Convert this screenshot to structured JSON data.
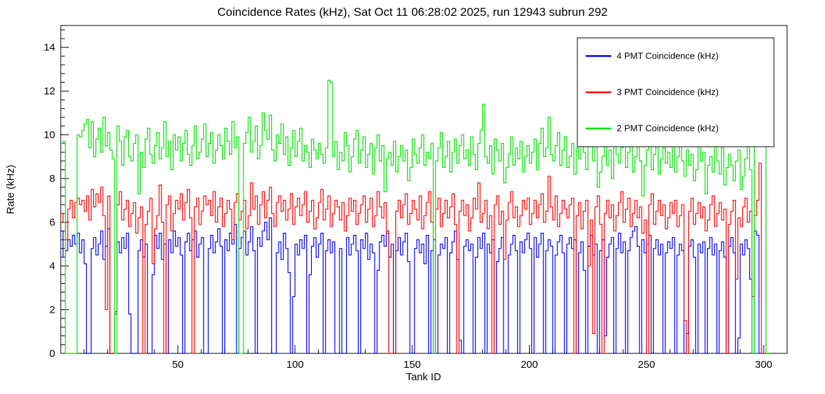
{
  "chart_data": {
    "type": "line",
    "subtype": "step-histogram",
    "title": "Coincidence Rates (kHz), Sat Oct 11 06:28:02 2025, run 12943 subrun 292",
    "xlabel": "Tank ID",
    "ylabel": "Rate (kHz)",
    "xlim": [
      0,
      310
    ],
    "ylim": [
      0,
      15
    ],
    "x_ticks_major": [
      50,
      100,
      150,
      200,
      250,
      300
    ],
    "x_minor_step": 10,
    "y_ticks_major": [
      0,
      2,
      4,
      6,
      8,
      10,
      12,
      14
    ],
    "y_minor_step": 0.4,
    "x_start": 0,
    "bin_width": 1,
    "grid": false,
    "legend_position": "top-right",
    "frame_color": "#000000",
    "series": [
      {
        "name": "4 PMT Coincidence (kHz)",
        "color": "#0000ff",
        "values": [
          5.6,
          4.4,
          4.7,
          5.2,
          4.9,
          5.4,
          5.0,
          5.5,
          4.6,
          5.2,
          4.1,
          0,
          0,
          4.8,
          5.3,
          4.5,
          5.0,
          5.6,
          4.3,
          4.9,
          5.7,
          0,
          0,
          1.9,
          5.1,
          4.6,
          5.3,
          4.8,
          5.5,
          1.8,
          0,
          0,
          0,
          4.7,
          5.2,
          4.4,
          5.0,
          0,
          0,
          3.6,
          5.4,
          4.8,
          5.5,
          4.3,
          5.0,
          0,
          5.2,
          4.6,
          5.6,
          4.9,
          5.3,
          4.5,
          0,
          5.1,
          5.5,
          4.7,
          5.2,
          5.6,
          4.4,
          5.0,
          5.3,
          0,
          0,
          4.8,
          5.4,
          4.6,
          5.1,
          5.7,
          4.9,
          0,
          5.2,
          4.7,
          5.5,
          5.0,
          5.9,
          0,
          4.8,
          5.3,
          5.6,
          4.5,
          5.1,
          5.8,
          4.7,
          0,
          5.3,
          4.9,
          5.6,
          6.0,
          5.2,
          6.2,
          0,
          0,
          4.6,
          5.1,
          4.3,
          5.5,
          4.8,
          3.7,
          0,
          2.6,
          5.0,
          4.5,
          5.2,
          4.8,
          5.4,
          0,
          3.6,
          4.9,
          5.3,
          4.4,
          5.0,
          5.5,
          0,
          4.7,
          5.2,
          4.6,
          5.1,
          0,
          0,
          4.8,
          0,
          0,
          5.3,
          4.5,
          5.0,
          5.4,
          4.7,
          0,
          5.2,
          4.8,
          5.5,
          4.3,
          5.0,
          4.6,
          0,
          3.8,
          5.1,
          5.4,
          4.9,
          5.6,
          4.4,
          5.0,
          0,
          4.7,
          5.3,
          4.5,
          5.1,
          5.5,
          4.2,
          0,
          0,
          4.8,
          5.2,
          4.6,
          5.0,
          4.1,
          5.4,
          0,
          4.7,
          5.2,
          0,
          4.5,
          5.0,
          4.8,
          5.3,
          0,
          4.6,
          5.1,
          5.6,
          4.3,
          0.6,
          0,
          4.9,
          5.2,
          4.7,
          5.0,
          0,
          4.4,
          5.3,
          4.8,
          5.5,
          0,
          5.0,
          4.6,
          5.2,
          0,
          4.2,
          4.8,
          5.3,
          0,
          0,
          4.5,
          5.0,
          5.4,
          4.7,
          0,
          5.1,
          4.6,
          5.2,
          5.5,
          4.8,
          0,
          5.3,
          4.4,
          5.0,
          5.5,
          0,
          4.7,
          5.2,
          4.9,
          0,
          4.5,
          5.1,
          5.4,
          4.6,
          0,
          5.0,
          5.3,
          4.8,
          5.2,
          0,
          4.6,
          5.1,
          3.8,
          0,
          4.9,
          5.4,
          4.5,
          5.0,
          0,
          4.7,
          5.2,
          0.8,
          4.4,
          5.0,
          5.3,
          0,
          4.8,
          5.5,
          4.6,
          5.1,
          0,
          4.7,
          5.3,
          5.6,
          5.8,
          4.9,
          0,
          5.2,
          4.6,
          5.0,
          5.4,
          0,
          4.8,
          5.2,
          4.5,
          5.0,
          0,
          4.6,
          5.1,
          4.8,
          5.3,
          0,
          4.5,
          5.0,
          4.7,
          0,
          0.9,
          4.9,
          5.2,
          4.4,
          0,
          5.0,
          4.6,
          5.1,
          0,
          4.8,
          5.3,
          4.5,
          5.0,
          0,
          4.7,
          5.1,
          4.4,
          0,
          4.9,
          5.3,
          4.6,
          0,
          0.7,
          5.0,
          4.5,
          5.2,
          4.8,
          3.4,
          0,
          5.6,
          5.4,
          0,
          0,
          0,
          0,
          0
        ]
      },
      {
        "name": "3 PMT Coincidence (kHz)",
        "color": "#ff0000",
        "values": [
          6.4,
          6.0,
          5.2,
          6.6,
          7.0,
          6.2,
          6.9,
          7.1,
          6.8,
          7.0,
          6.5,
          7.2,
          6.1,
          7.5,
          6.7,
          7.3,
          6.9,
          7.6,
          6.3,
          2.0,
          7.2,
          0,
          0,
          1.8,
          6.8,
          7.4,
          6.1,
          6.6,
          7.0,
          5.8,
          6.4,
          6.9,
          5.5,
          6.2,
          6.7,
          0,
          5.9,
          6.5,
          7.1,
          4.1,
          5.7,
          6.3,
          7.7,
          6.0,
          0,
          6.8,
          7.2,
          5.6,
          6.4,
          7.0,
          6.6,
          7.3,
          6.1,
          6.9,
          7.5,
          6.2,
          0,
          6.7,
          7.1,
          5.9,
          6.5,
          7.2,
          6.8,
          7.0,
          6.3,
          7.4,
          6.0,
          6.7,
          7.1,
          5.8,
          6.4,
          7.0,
          6.6,
          5.2,
          6.9,
          7.3,
          6.1,
          6.5,
          7.0,
          5.7,
          6.3,
          7.8,
          6.6,
          7.2,
          5.9,
          6.8,
          7.4,
          6.2,
          7.0,
          7.6,
          6.4,
          5.8,
          6.9,
          7.2,
          6.5,
          7.0,
          6.1,
          6.6,
          7.3,
          5.9,
          6.7,
          7.1,
          6.3,
          6.8,
          7.4,
          6.0,
          6.5,
          7.0,
          5.7,
          6.2,
          6.9,
          7.5,
          6.1,
          6.6,
          7.2,
          5.8,
          6.4,
          7.0,
          6.7,
          6.1,
          6.9,
          5.6,
          6.3,
          7.1,
          6.5,
          7.0,
          5.9,
          6.4,
          6.8,
          7.2,
          6.0,
          6.6,
          7.1,
          5.8,
          6.3,
          7.4,
          6.7,
          6.2,
          6.9,
          5.5,
          0,
          0,
          0,
          6.5,
          7.0,
          6.2,
          6.8,
          7.3,
          5.9,
          6.4,
          7.0,
          6.6,
          6.1,
          7.2,
          5.7,
          6.3,
          6.9,
          7.4,
          6.0,
          0,
          6.6,
          7.1,
          5.8,
          6.4,
          7.0,
          6.2,
          6.7,
          7.3,
          5.9,
          0,
          6.5,
          7.0,
          6.3,
          6.8,
          5.6,
          6.2,
          7.1,
          6.6,
          7.8,
          6.0,
          6.4,
          7.0,
          5.7,
          6.3,
          0,
          6.8,
          7.2,
          5.9,
          6.5,
          4.3,
          6.1,
          6.9,
          7.4,
          6.2,
          6.7,
          5.8,
          6.3,
          7.0,
          6.6,
          7.1,
          5.9,
          6.4,
          7.0,
          6.2,
          6.8,
          7.3,
          6.0,
          6.5,
          8.1,
          6.7,
          6.1,
          7.2,
          5.8,
          6.4,
          7.0,
          6.6,
          6.2,
          6.8,
          7.1,
          0,
          6.3,
          6.9,
          5.7,
          6.5,
          7.0,
          4.0,
          6.1,
          0.9,
          6.7,
          7.2,
          5.9,
          0,
          6.4,
          7.0,
          6.2,
          6.8,
          5.6,
          6.3,
          6.9,
          7.4,
          6.0,
          6.6,
          7.1,
          5.8,
          6.4,
          7.0,
          6.2,
          6.7,
          5.5,
          6.1,
          0,
          6.8,
          7.3,
          5.9,
          6.5,
          7.0,
          6.3,
          6.8,
          5.7,
          6.2,
          6.9,
          6.4,
          7.0,
          5.8,
          6.3,
          6.8,
          1.5,
          0,
          6.5,
          7.1,
          5.9,
          6.4,
          6.9,
          6.2,
          6.7,
          5.6,
          6.1,
          6.8,
          7.2,
          5.8,
          6.4,
          6.9,
          6.1,
          6.6,
          0,
          5.9,
          6.5,
          7.0,
          3.4,
          6.2,
          5.8,
          6.7,
          7.1,
          6.0,
          6.5,
          2.6,
          6.3,
          7.0,
          8.7,
          0,
          0,
          0,
          0
        ]
      },
      {
        "name": "2 PMT Coincidence (kHz)",
        "color": "#00e000",
        "values": [
          9.6,
          9.7,
          0,
          0,
          0,
          0,
          0,
          10.0,
          9.9,
          10.2,
          10.5,
          10.7,
          9.4,
          10.6,
          9.0,
          9.8,
          10.3,
          9.2,
          10.8,
          9.5,
          10.1,
          9.3,
          8.9,
          0,
          10.4,
          9.7,
          8.6,
          9.9,
          10.2,
          9.0,
          8.8,
          9.6,
          10.0,
          7.3,
          9.2,
          8.5,
          9.8,
          10.3,
          9.1,
          8.7,
          9.5,
          10.1,
          8.9,
          9.4,
          10.6,
          9.0,
          9.7,
          8.4,
          10.0,
          9.3,
          9.9,
          8.8,
          9.6,
          10.2,
          9.1,
          8.6,
          9.5,
          10.4,
          8.9,
          9.2,
          9.8,
          10.5,
          9.0,
          9.6,
          10.1,
          8.7,
          9.3,
          10.0,
          9.5,
          8.9,
          10.3,
          9.7,
          9.1,
          10.6,
          9.4,
          9.9,
          0,
          0,
          9.6,
          10.1,
          10.8,
          9.2,
          9.7,
          10.4,
          8.9,
          9.5,
          11.0,
          10.2,
          9.8,
          10.9,
          9.3,
          8.8,
          10.0,
          9.6,
          10.5,
          9.1,
          9.9,
          8.6,
          9.4,
          10.2,
          9.0,
          9.7,
          10.3,
          8.8,
          9.5,
          9.2,
          8.5,
          9.8,
          9.3,
          8.9,
          9.6,
          9.1,
          8.7,
          9.4,
          12.5,
          12.4,
          9.0,
          9.7,
          8.4,
          9.2,
          8.8,
          10.1,
          9.5,
          8.3,
          9.0,
          9.8,
          10.2,
          8.7,
          9.3,
          9.9,
          8.5,
          9.1,
          9.6,
          8.2,
          9.4,
          10.0,
          8.8,
          9.5,
          7.4,
          8.9,
          9.2,
          8.6,
          9.7,
          8.3,
          9.0,
          9.5,
          8.8,
          9.3,
          7.9,
          8.5,
          9.8,
          9.1,
          8.7,
          9.4,
          10.0,
          8.6,
          9.2,
          8.9,
          9.6,
          0,
          8.8,
          9.4,
          10.1,
          8.5,
          9.0,
          9.7,
          8.3,
          9.2,
          9.8,
          8.7,
          9.5,
          10.0,
          8.9,
          9.3,
          8.6,
          9.9,
          9.1,
          8.4,
          9.6,
          10.2,
          11.4,
          9.0,
          8.7,
          9.5,
          8.2,
          9.8,
          9.3,
          8.8,
          9.6,
          7.8,
          8.5,
          9.1,
          9.9,
          8.6,
          9.4,
          8.9,
          9.7,
          8.3,
          9.0,
          9.5,
          8.7,
          9.2,
          9.8,
          8.4,
          9.6,
          10.3,
          9.0,
          9.4,
          10.8,
          9.1,
          8.8,
          9.5,
          10.1,
          8.6,
          9.3,
          9.9,
          8.5,
          9.0,
          9.6,
          8.2,
          9.4,
          8.9,
          10.6,
          9.2,
          8.4,
          9.7,
          10.2,
          8.8,
          9.5,
          7.6,
          8.3,
          9.0,
          9.8,
          8.6,
          9.3,
          8.0,
          9.6,
          9.1,
          8.7,
          9.4,
          10.0,
          8.5,
          9.2,
          9.7,
          8.3,
          9.0,
          9.5,
          8.8,
          7.2,
          8.6,
          9.3,
          9.9,
          8.4,
          9.1,
          9.6,
          8.2,
          8.9,
          9.4,
          8.7,
          9.2,
          8.5,
          9.8,
          8.3,
          9.0,
          9.5,
          8.8,
          8.1,
          9.3,
          8.6,
          9.1,
          7.9,
          8.4,
          9.7,
          8.8,
          9.2,
          7.3,
          8.6,
          9.0,
          8.3,
          9.5,
          8.8,
          8.2,
          9.4,
          7.7,
          8.5,
          9.1,
          8.6,
          7.9,
          8.8,
          9.3,
          7.5,
          8.1,
          8.9,
          9.6,
          8.4,
          0,
          10.5,
          11.0,
          11.9,
          12.3,
          9.8,
          0,
          0
        ]
      }
    ]
  }
}
